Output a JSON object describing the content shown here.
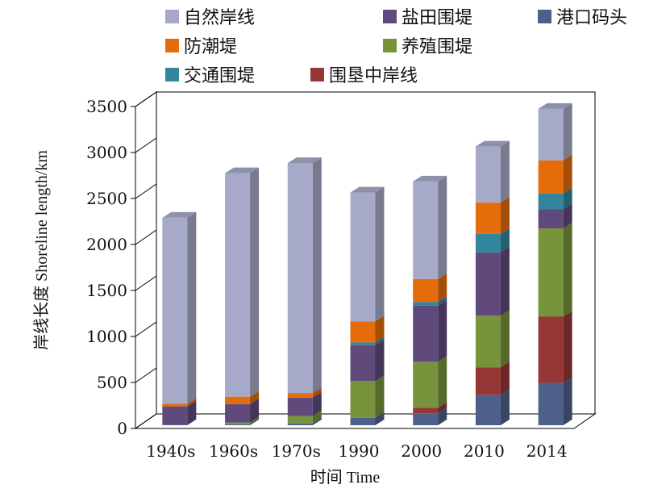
{
  "chart_data": {
    "type": "bar",
    "stacked": true,
    "style": "3d-column",
    "categories": [
      "1940s",
      "1960s",
      "1970s",
      "1990",
      "2000",
      "2010",
      "2014"
    ],
    "series": [
      {
        "name": "港口码头",
        "color": "#4e6089",
        "values": [
          5,
          10,
          20,
          80,
          130,
          330,
          460
        ]
      },
      {
        "name": "围垦中岸线",
        "color": "#953735",
        "values": [
          0,
          0,
          0,
          0,
          60,
          300,
          720
        ]
      },
      {
        "name": "养殖围堤",
        "color": "#77933c",
        "values": [
          0,
          20,
          80,
          400,
          500,
          560,
          960
        ]
      },
      {
        "name": "盐田围堤",
        "color": "#604a7b",
        "values": [
          200,
          200,
          200,
          390,
          610,
          690,
          210
        ]
      },
      {
        "name": "交通围堤",
        "color": "#31859c",
        "values": [
          0,
          0,
          0,
          30,
          40,
          200,
          170
        ]
      },
      {
        "name": "防潮堤",
        "color": "#e46c0a",
        "values": [
          30,
          80,
          50,
          230,
          250,
          340,
          360
        ]
      },
      {
        "name": "自然岸线",
        "color": "#a6aac8",
        "values": [
          2020,
          2430,
          2500,
          1400,
          1060,
          610,
          560
        ]
      }
    ],
    "legend_order": [
      "自然岸线",
      "盐田围堤",
      "港口码头",
      "防潮堤",
      "养殖围堤",
      "交通围堤",
      "围垦中岸线"
    ],
    "xlabel": "时间 Time",
    "ylabel": "岸线长度 Shoreline length/km",
    "ylim": [
      0,
      3500
    ],
    "yticks": [
      0,
      500,
      1000,
      1500,
      2000,
      2500,
      3000,
      3500
    ],
    "grid": false,
    "legend_position": "top"
  }
}
